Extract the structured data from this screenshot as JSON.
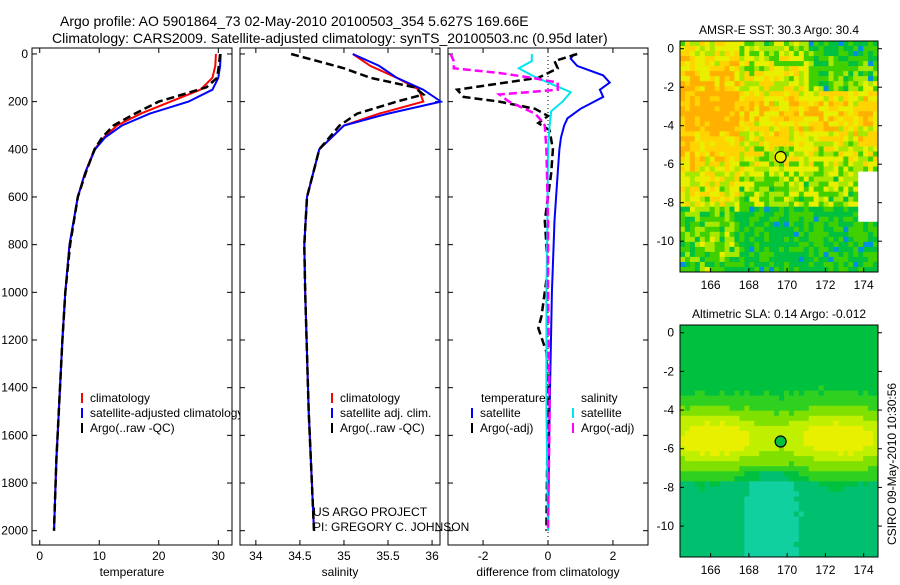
{
  "title": {
    "line1": "Argo profile: AO 5901864_73 02-May-2010 20100503_354 5.627S 169.66E",
    "line2": "Climatology: CARS2009. Satellite-adjusted climatology: synTS_20100503.nc (0.95d later)"
  },
  "credit": {
    "line1": "US ARGO PROJECT",
    "line2": "PI: GREGORY C. JOHNSON"
  },
  "timestamp": "CSIRO 09-May-2010 10:30:56",
  "colors": {
    "red": "#ff0000",
    "blue": "#0000ff",
    "black": "#000000",
    "cyan": "#00e5ee",
    "magenta": "#ff00ff"
  },
  "chart_data": [
    {
      "type": "line",
      "xlabel": "temperature",
      "ylabel": "",
      "xlim": [
        -1.3,
        32.3
      ],
      "ylim": [
        2060,
        -25
      ],
      "xticks": [
        "0",
        "10",
        "20",
        "30"
      ],
      "xtick_values": [
        0,
        10,
        20,
        30
      ],
      "yticks": [
        "0",
        "200",
        "400",
        "600",
        "800",
        "1000",
        "1200",
        "1400",
        "1600",
        "1800",
        "2000"
      ],
      "ytick_values": [
        0,
        200,
        400,
        600,
        800,
        1000,
        1200,
        1400,
        1600,
        1800,
        2000
      ],
      "legend": [
        "climatology",
        "satellite-adjusted climatology",
        "Argo(..raw -QC)"
      ],
      "series": [
        {
          "name": "climatology",
          "color": "red",
          "dash": false,
          "depth": [
            0,
            50,
            100,
            150,
            200,
            250,
            300,
            350,
            400,
            500,
            600,
            800,
            1000,
            1200,
            1500,
            1700,
            2000
          ],
          "values": [
            29.6,
            29.5,
            29,
            27,
            22,
            17,
            13,
            10.8,
            9.2,
            7.6,
            6.4,
            5,
            4.3,
            3.8,
            3.2,
            2.8,
            2.4
          ]
        },
        {
          "name": "satellite-adjusted climatology",
          "color": "blue",
          "dash": false,
          "depth": [
            0,
            50,
            100,
            150,
            200,
            250,
            300,
            350,
            400,
            500,
            600,
            800,
            1000,
            1200,
            1500,
            1700,
            2000
          ],
          "values": [
            30.4,
            30.3,
            30,
            29,
            25,
            18.5,
            13.8,
            11,
            9.3,
            7.6,
            6.4,
            5,
            4.3,
            3.8,
            3.2,
            2.8,
            2.4
          ]
        },
        {
          "name": "Argo(..raw -QC)",
          "color": "black",
          "dash": true,
          "depth": [
            0,
            50,
            100,
            140,
            170,
            200,
            250,
            300,
            350,
            400,
            500,
            600,
            800,
            1000,
            1200,
            1500,
            1700,
            2000
          ],
          "values": [
            30.3,
            30.1,
            29.8,
            28,
            24,
            20,
            16,
            12.4,
            10.5,
            9.2,
            7.7,
            6.4,
            5.1,
            4.3,
            3.8,
            3.2,
            2.8,
            2.4
          ]
        }
      ]
    },
    {
      "type": "line",
      "xlabel": "salinity",
      "ylabel": "",
      "xlim": [
        33.82,
        36.09
      ],
      "ylim": [
        2060,
        -25
      ],
      "xticks": [
        "34",
        "34.5",
        "35",
        "35.5",
        "36"
      ],
      "xtick_values": [
        34,
        34.5,
        35,
        35.5,
        36
      ],
      "legend": [
        "climatology",
        "satellite adj. clim.",
        "Argo(..raw -QC)"
      ],
      "series": [
        {
          "name": "climatology",
          "color": "red",
          "dash": false,
          "depth": [
            0,
            50,
            100,
            150,
            200,
            250,
            300,
            400,
            600,
            800,
            1000,
            1500,
            2000
          ],
          "values": [
            35.1,
            35.3,
            35.6,
            35.85,
            35.9,
            35.4,
            35.0,
            34.72,
            34.58,
            34.55,
            34.56,
            34.6,
            34.66
          ]
        },
        {
          "name": "satellite adj. clim.",
          "color": "blue",
          "dash": false,
          "depth": [
            0,
            50,
            100,
            150,
            200,
            250,
            300,
            400,
            600,
            800,
            1000,
            1500,
            2000
          ],
          "values": [
            35.1,
            35.4,
            35.6,
            35.9,
            36.1,
            35.5,
            35.0,
            34.72,
            34.58,
            34.55,
            34.56,
            34.6,
            34.66
          ]
        },
        {
          "name": "Argo(..raw -QC)",
          "color": "black",
          "dash": true,
          "depth": [
            0,
            30,
            60,
            100,
            140,
            170,
            200,
            250,
            300,
            400,
            600,
            800,
            1000,
            1500,
            2000
          ],
          "values": [
            34.4,
            34.7,
            35.0,
            35.3,
            35.8,
            35.9,
            35.6,
            35.15,
            34.95,
            34.72,
            34.58,
            34.55,
            34.56,
            34.6,
            34.66
          ]
        }
      ]
    },
    {
      "type": "line",
      "xlabel": "difference from climatology",
      "ylabel": "",
      "xlim": [
        -3.08,
        3.08
      ],
      "ylim": [
        2060,
        -25
      ],
      "xticks": [
        "-2",
        "0",
        "2"
      ],
      "xtick_values": [
        -2,
        0,
        2
      ],
      "legend": {
        "temperature_title": "temperature",
        "temperature": [
          "satellite",
          "Argo(-adj)"
        ],
        "salinity_title": "salinity",
        "salinity": [
          "satellite",
          "Argo(-adj)"
        ]
      },
      "series": [
        {
          "name": "temperature satellite",
          "color": "blue",
          "dash": false,
          "depth": [
            0,
            20,
            50,
            90,
            120,
            150,
            180,
            230,
            270,
            300,
            350,
            400,
            500,
            700,
            1000,
            1500,
            2000
          ],
          "values": [
            0.8,
            0.7,
            0.9,
            1.7,
            1.9,
            1.6,
            1.7,
            1.0,
            0.6,
            0.5,
            0.4,
            0.35,
            0.3,
            0.2,
            0.12,
            0.05,
            0.0
          ]
        },
        {
          "name": "temperature Argo(-adj)",
          "color": "black",
          "dash": true,
          "depth": [
            0,
            30,
            60,
            100,
            150,
            180,
            200,
            230,
            260,
            290,
            320,
            400,
            500,
            700,
            900,
            1100,
            1150,
            1250,
            1400,
            2000
          ],
          "values": [
            0.9,
            0.2,
            0.3,
            -0.3,
            -2.8,
            -2.6,
            -1.5,
            -0.4,
            0,
            -0.3,
            0.05,
            0.15,
            0.1,
            -0.1,
            0.0,
            -0.2,
            -0.3,
            -0.05,
            0.0,
            -0.05
          ]
        },
        {
          "name": "salinity satellite",
          "color": "cyan",
          "dash": false,
          "depth": [
            0,
            30,
            60,
            90,
            120,
            160,
            200,
            240,
            300,
            400,
            700,
            1000,
            1500,
            2000
          ],
          "values": [
            -0.5,
            -0.5,
            -0.9,
            -0.5,
            0,
            0.7,
            0.45,
            0.1,
            0.05,
            0,
            -0.02,
            -0.05,
            -0.05,
            0.0
          ]
        },
        {
          "name": "salinity Argo(-adj)",
          "color": "magenta",
          "dash": true,
          "depth": [
            0,
            30,
            60,
            80,
            100,
            120,
            150,
            170,
            200,
            250,
            280,
            300,
            400,
            700,
            1000,
            1500,
            2000
          ],
          "values": [
            -3.0,
            -2.9,
            -2.9,
            -1.5,
            -0.5,
            0.3,
            0.3,
            -1.5,
            -1.2,
            -0.4,
            -0.2,
            -0.1,
            -0.05,
            0,
            0,
            0.05,
            0
          ]
        }
      ]
    },
    {
      "type": "heatmap",
      "title": "AMSR-E SST: 30.3 Argo: 30.4",
      "xlim": [
        164.4,
        174.75
      ],
      "ylim": [
        -11.6,
        0.4
      ],
      "xticks": [
        "166",
        "168",
        "170",
        "172",
        "174"
      ],
      "xtick_values": [
        166,
        168,
        170,
        172,
        174
      ],
      "yticks": [
        "0",
        "-2",
        "-4",
        "-6",
        "-8",
        "-10"
      ],
      "ytick_values": [
        0,
        -2,
        -4,
        -6,
        -8,
        -10
      ],
      "marker": {
        "lon": 169.66,
        "lat": -5.627
      }
    },
    {
      "type": "heatmap",
      "title": "Altimetric SLA: 0.14 Argo: -0.012",
      "xlim": [
        164.4,
        174.75
      ],
      "ylim": [
        -11.6,
        0.4
      ],
      "xticks": [
        "166",
        "168",
        "170",
        "172",
        "174"
      ],
      "xtick_values": [
        166,
        168,
        170,
        172,
        174
      ],
      "yticks": [
        "0",
        "-2",
        "-4",
        "-6",
        "-8",
        "-10"
      ],
      "ytick_values": [
        0,
        -2,
        -4,
        -6,
        -8,
        -10
      ],
      "marker": {
        "lon": 169.66,
        "lat": -5.627
      }
    }
  ]
}
